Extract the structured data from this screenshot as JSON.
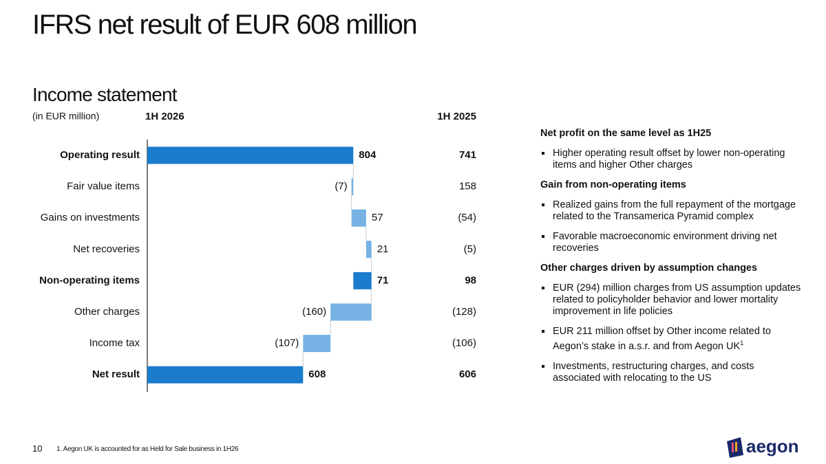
{
  "title": "IFRS net result of EUR 608 million",
  "chart_data": {
    "type": "waterfall",
    "title": "Income statement",
    "unit_label": "(in EUR million)",
    "categories": [
      "Operating result",
      "Fair value items",
      "Gains on investments",
      "Net recoveries",
      "Non-operating items",
      "Other charges",
      "Income tax",
      "Net result"
    ],
    "measure": [
      "total",
      "relative",
      "relative",
      "relative",
      "subtotal",
      "relative",
      "relative",
      "total"
    ],
    "series": [
      {
        "name": "1H 2026",
        "values": [
          804,
          -7,
          57,
          21,
          71,
          -160,
          -107,
          608
        ],
        "value_labels": [
          "804",
          "(7)",
          "57",
          "21",
          "71",
          "(160)",
          "(107)",
          "608"
        ]
      }
    ],
    "comparison": {
      "name": "1H 2025",
      "values": [
        741,
        158,
        -54,
        -5,
        98,
        -128,
        -106,
        606
      ],
      "value_labels": [
        "741",
        "158",
        "(54)",
        "(5)",
        "98",
        "(128)",
        "(106)",
        "606"
      ]
    },
    "colors": {
      "total": "#1b7bcc",
      "subtotal": "#1b7bcc",
      "relative": "#76b2e3"
    },
    "xlim": [
      0,
      900
    ]
  },
  "commentary": [
    {
      "heading": "Net profit on the same level as 1H25",
      "bullets": [
        "Higher operating result offset by lower non-operating items and higher Other charges"
      ]
    },
    {
      "heading": "Gain from non-operating items",
      "bullets": [
        "Realized gains from the full repayment of the mortgage related to the Transamerica Pyramid complex",
        "Favorable macroeconomic environment driving net recoveries"
      ]
    },
    {
      "heading": "Other charges driven by assumption changes",
      "bullets": [
        "EUR (294) million charges from US assumption updates related to policyholder behavior and lower mortality improvement in life policies",
        "EUR 211 million offset by Other income related to Aegon’s stake in a.s.r. and from Aegon UK",
        "Investments, restructuring charges, and costs associated with relocating to the US"
      ]
    }
  ],
  "footnote_ref": "1",
  "footnote": "1. Aegon UK is accounted for as Held for Sale business in 1H26",
  "page_number": "10",
  "logo": "aegon"
}
